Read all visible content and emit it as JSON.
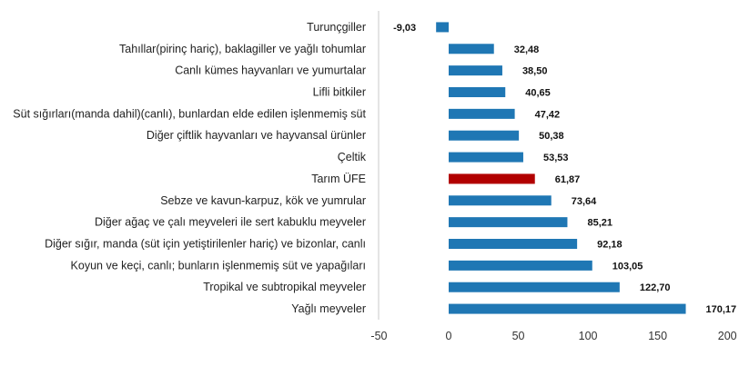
{
  "chart_data": {
    "type": "bar",
    "orientation": "horizontal",
    "categories": [
      "Turunçgiller",
      "Tahıllar(pirinç hariç), baklagiller ve yağlı tohumlar",
      "Canlı kümes hayvanları ve yumurtalar",
      "Lifli bitkiler",
      "Süt sığırları(manda dahil)(canlı), bunlardan elde edilen işlenmemiş süt",
      "Diğer çiftlik hayvanları ve hayvansal ürünler",
      "Çeltik",
      "Tarım ÜFE",
      "Sebze ve kavun-karpuz, kök ve yumrular",
      "Diğer ağaç ve çalı meyveleri ile sert kabuklu meyveler",
      "Diğer sığır, manda (süt için yetiştirilenler hariç) ve bizonlar, canlı",
      "Koyun ve keçi, canlı; bunların işlenmemiş süt ve yapağıları",
      "Tropikal ve subtropikal meyveler",
      "Yağlı meyveler"
    ],
    "values": [
      -9.03,
      32.48,
      38.5,
      40.65,
      47.42,
      50.38,
      53.53,
      61.87,
      73.64,
      85.21,
      92.18,
      103.05,
      122.7,
      170.17
    ],
    "value_labels": [
      "-9,03",
      "32,48",
      "38,50",
      "40,65",
      "47,42",
      "50,38",
      "53,53",
      "61,87",
      "73,64",
      "85,21",
      "92,18",
      "103,05",
      "122,70",
      "170,17"
    ],
    "highlight_index": 7,
    "xlim": [
      -50,
      200
    ],
    "xticks": [
      -50,
      0,
      50,
      100,
      150,
      200
    ],
    "xtick_labels": [
      "-50",
      "0",
      "50",
      "100",
      "150",
      "200"
    ],
    "title": "",
    "xlabel": "",
    "ylabel": "",
    "grid": false,
    "legend": "none",
    "colors": {
      "bar": "#1f77b4",
      "highlight": "#b20000",
      "axis": "#c8c8c8"
    }
  }
}
